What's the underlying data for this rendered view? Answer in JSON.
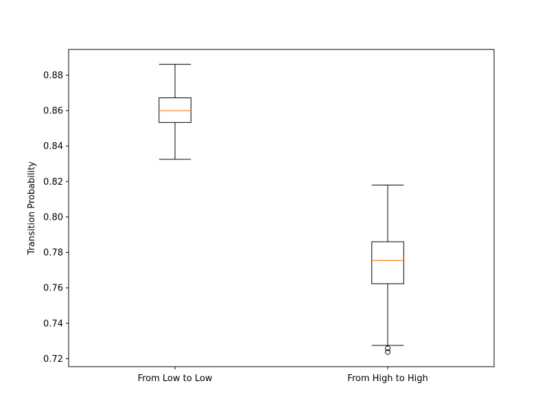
{
  "chart_data": {
    "type": "box",
    "title": "",
    "xlabel": "",
    "ylabel": "Transition Probability",
    "ylim": [
      0.7155,
      0.8945
    ],
    "yticks": [
      "0.72",
      "0.74",
      "0.76",
      "0.78",
      "0.80",
      "0.82",
      "0.84",
      "0.86",
      "0.88"
    ],
    "grid": false,
    "categories": [
      "From Low to Low",
      "From High to High"
    ],
    "boxes": [
      {
        "category": "From Low to Low",
        "whisker_low": 0.8325,
        "q1": 0.8533,
        "median": 0.8599,
        "q3": 0.8672,
        "whisker_high": 0.8861,
        "outliers": []
      },
      {
        "category": "From High to High",
        "whisker_low": 0.7275,
        "q1": 0.7623,
        "median": 0.7754,
        "q3": 0.786,
        "whisker_high": 0.818,
        "outliers": [
          0.7258,
          0.7238
        ]
      }
    ],
    "colors": {
      "box": "#000000",
      "median": "#ff7f0e",
      "outlier": "#000000"
    }
  }
}
